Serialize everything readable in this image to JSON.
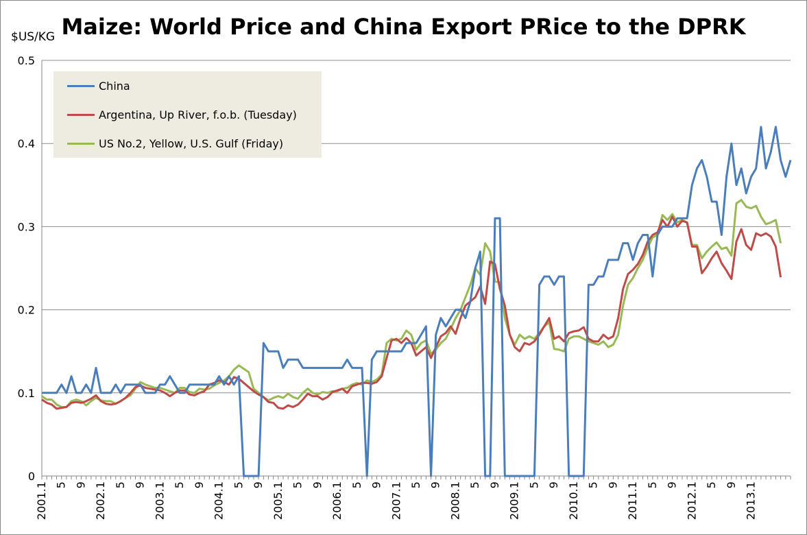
{
  "chart_data": {
    "type": "line",
    "title": "Maize: World Price and China Export PRice to the DPRK",
    "ylabel": "$US/KG",
    "xlabel": "",
    "ylim": [
      0,
      0.5
    ],
    "yticks": [
      "0",
      "0.1",
      "0.2",
      "0.3",
      "0.4",
      "0.5"
    ],
    "grid": true,
    "legend_position": "top-left",
    "x_start": "2001.1",
    "x_unit": "month",
    "x_tick_labels": [
      "2001.1",
      "5",
      "9",
      "2002.1",
      "5",
      "9",
      "2003.1",
      "5",
      "9",
      "2004.1",
      "5",
      "9",
      "2005.1",
      "5",
      "9",
      "2006.1",
      "5",
      "9",
      "2007.1",
      "5",
      "9",
      "2008.1",
      "5",
      "9",
      "2009.1",
      "5",
      "9",
      "2010.1",
      "5",
      "9",
      "2011.1",
      "5",
      "9",
      "2012.1",
      "5",
      "9",
      "2013.1"
    ],
    "series": [
      {
        "name": "China",
        "color": "#4a7ebb",
        "values": [
          0.1,
          0.1,
          0.1,
          0.1,
          0.11,
          0.1,
          0.12,
          0.1,
          0.1,
          0.11,
          0.1,
          0.13,
          0.1,
          0.1,
          0.1,
          0.11,
          0.1,
          0.11,
          0.11,
          0.11,
          0.11,
          0.1,
          0.1,
          0.1,
          0.11,
          0.11,
          0.12,
          0.11,
          0.1,
          0.1,
          0.11,
          0.11,
          0.11,
          0.11,
          0.11,
          0.11,
          0.12,
          0.11,
          0.12,
          0.11,
          0.12,
          0.0,
          0.0,
          0.0,
          0.0,
          0.16,
          0.15,
          0.15,
          0.15,
          0.13,
          0.14,
          0.14,
          0.14,
          0.13,
          0.13,
          0.13,
          0.13,
          0.13,
          0.13,
          0.13,
          0.13,
          0.13,
          0.14,
          0.13,
          0.13,
          0.13,
          0.0,
          0.14,
          0.15,
          0.15,
          0.15,
          0.15,
          0.15,
          0.15,
          0.16,
          0.16,
          0.16,
          0.17,
          0.18,
          0.0,
          0.17,
          0.19,
          0.18,
          0.19,
          0.2,
          0.2,
          0.19,
          0.21,
          0.25,
          0.27,
          0.0,
          0.0,
          0.31,
          0.31,
          0.0,
          0.0,
          0.0,
          0.0,
          0.0,
          0.0,
          0.0,
          0.23,
          0.24,
          0.24,
          0.23,
          0.24,
          0.24,
          0.0,
          0.0,
          0.0,
          0.0,
          0.23,
          0.23,
          0.24,
          0.24,
          0.26,
          0.26,
          0.26,
          0.28,
          0.28,
          0.26,
          0.28,
          0.29,
          0.29,
          0.24,
          0.29,
          0.3,
          0.3,
          0.3,
          0.31,
          0.31,
          0.31,
          0.35,
          0.37,
          0.38,
          0.36,
          0.33,
          0.33,
          0.29,
          0.36,
          0.4,
          0.35,
          0.37,
          0.34,
          0.36,
          0.37,
          0.42,
          0.37,
          0.39,
          0.42,
          0.38,
          0.36,
          0.38
        ]
      },
      {
        "name": "Argentina, Up River, f.o.b. (Tuesday)",
        "color": "#be4b48",
        "values": [
          0.092,
          0.088,
          0.086,
          0.081,
          0.082,
          0.083,
          0.088,
          0.089,
          0.088,
          0.09,
          0.093,
          0.097,
          0.09,
          0.087,
          0.086,
          0.087,
          0.09,
          0.094,
          0.1,
          0.107,
          0.109,
          0.106,
          0.105,
          0.104,
          0.103,
          0.1,
          0.096,
          0.1,
          0.103,
          0.103,
          0.098,
          0.097,
          0.1,
          0.102,
          0.11,
          0.112,
          0.115,
          0.113,
          0.11,
          0.119,
          0.117,
          0.112,
          0.107,
          0.102,
          0.098,
          0.095,
          0.089,
          0.088,
          0.082,
          0.081,
          0.085,
          0.083,
          0.086,
          0.092,
          0.099,
          0.096,
          0.096,
          0.092,
          0.095,
          0.101,
          0.103,
          0.105,
          0.1,
          0.108,
          0.11,
          0.112,
          0.112,
          0.111,
          0.113,
          0.12,
          0.142,
          0.163,
          0.165,
          0.16,
          0.166,
          0.16,
          0.145,
          0.15,
          0.155,
          0.142,
          0.155,
          0.168,
          0.172,
          0.18,
          0.171,
          0.19,
          0.205,
          0.21,
          0.215,
          0.228,
          0.207,
          0.258,
          0.255,
          0.225,
          0.205,
          0.17,
          0.155,
          0.15,
          0.16,
          0.158,
          0.162,
          0.17,
          0.18,
          0.19,
          0.165,
          0.168,
          0.162,
          0.172,
          0.174,
          0.175,
          0.179,
          0.165,
          0.162,
          0.162,
          0.17,
          0.165,
          0.168,
          0.19,
          0.225,
          0.243,
          0.248,
          0.255,
          0.266,
          0.282,
          0.29,
          0.293,
          0.308,
          0.3,
          0.312,
          0.3,
          0.307,
          0.305,
          0.276,
          0.276,
          0.244,
          0.252,
          0.262,
          0.27,
          0.256,
          0.247,
          0.237,
          0.282,
          0.297,
          0.278,
          0.272,
          0.292,
          0.289,
          0.292,
          0.288,
          0.276,
          0.239
        ]
      },
      {
        "name": "US No.2, Yellow, U.S. Gulf  (Friday)",
        "color": "#98b954",
        "values": [
          0.096,
          0.092,
          0.092,
          0.086,
          0.083,
          0.083,
          0.09,
          0.092,
          0.09,
          0.085,
          0.09,
          0.094,
          0.091,
          0.09,
          0.09,
          0.087,
          0.09,
          0.094,
          0.097,
          0.105,
          0.113,
          0.11,
          0.108,
          0.106,
          0.106,
          0.104,
          0.102,
          0.1,
          0.106,
          0.106,
          0.101,
          0.1,
          0.105,
          0.104,
          0.105,
          0.109,
          0.112,
          0.115,
          0.12,
          0.128,
          0.133,
          0.129,
          0.125,
          0.105,
          0.1,
          0.095,
          0.091,
          0.094,
          0.096,
          0.094,
          0.099,
          0.095,
          0.093,
          0.1,
          0.105,
          0.1,
          0.098,
          0.101,
          0.1,
          0.102,
          0.102,
          0.105,
          0.106,
          0.11,
          0.112,
          0.11,
          0.115,
          0.113,
          0.116,
          0.122,
          0.16,
          0.165,
          0.163,
          0.165,
          0.175,
          0.17,
          0.152,
          0.16,
          0.163,
          0.147,
          0.152,
          0.16,
          0.165,
          0.177,
          0.19,
          0.2,
          0.215,
          0.23,
          0.25,
          0.242,
          0.28,
          0.27,
          0.234,
          0.233,
          0.19,
          0.17,
          0.158,
          0.17,
          0.165,
          0.168,
          0.165,
          0.172,
          0.18,
          0.185,
          0.153,
          0.152,
          0.15,
          0.165,
          0.168,
          0.168,
          0.165,
          0.162,
          0.16,
          0.158,
          0.162,
          0.155,
          0.158,
          0.17,
          0.205,
          0.23,
          0.238,
          0.25,
          0.26,
          0.275,
          0.287,
          0.29,
          0.314,
          0.308,
          0.315,
          0.305,
          0.308,
          0.305,
          0.278,
          0.278,
          0.262,
          0.27,
          0.276,
          0.281,
          0.273,
          0.275,
          0.265,
          0.328,
          0.332,
          0.324,
          0.322,
          0.325,
          0.312,
          0.303,
          0.305,
          0.308,
          0.28
        ]
      }
    ]
  }
}
